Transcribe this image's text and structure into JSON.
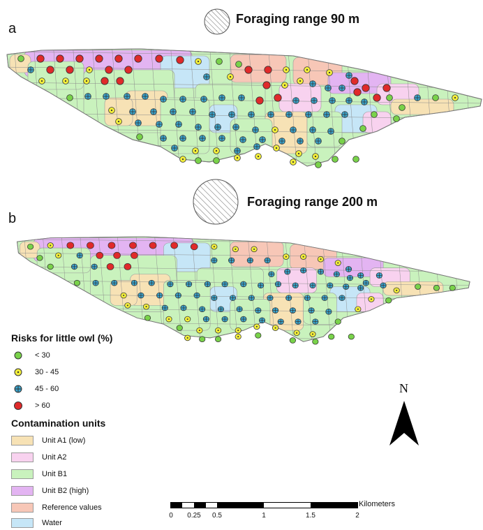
{
  "panels": [
    {
      "letter": "a",
      "foraging_label": "Foraging range 90 m"
    },
    {
      "letter": "b",
      "foraging_label": "Foraging range 200 m"
    }
  ],
  "risk_legend": {
    "title": "Risks for little owl (%)",
    "classes": [
      {
        "label": "< 30",
        "color": "#79d24a",
        "symbol": "dot"
      },
      {
        "label": "30 - 45",
        "color": "#f2ee3a",
        "symbol": "dot-center"
      },
      {
        "label": "45 - 60",
        "color": "#3aa6cf",
        "symbol": "cross"
      },
      {
        "label": "> 60",
        "color": "#e02a2a",
        "symbol": "dot"
      }
    ]
  },
  "unit_legend": {
    "title": "Contamination units",
    "units": [
      {
        "label": "Unit A1 (low)",
        "color": "#f7e2b5"
      },
      {
        "label": "Unit A2",
        "color": "#f8d2ef"
      },
      {
        "label": "Unit B1",
        "color": "#c9f2bd"
      },
      {
        "label": "Unit B2 (high)",
        "color": "#e3b4f2"
      },
      {
        "label": "Reference values",
        "color": "#f7c7b7"
      },
      {
        "label": "Water",
        "color": "#c6e6f7"
      }
    ]
  },
  "north_label": "N",
  "scale_bar": {
    "unit": "Kilometers",
    "ticks": [
      "0",
      "0.25",
      "0.5",
      "1",
      "1.5",
      "2"
    ]
  }
}
